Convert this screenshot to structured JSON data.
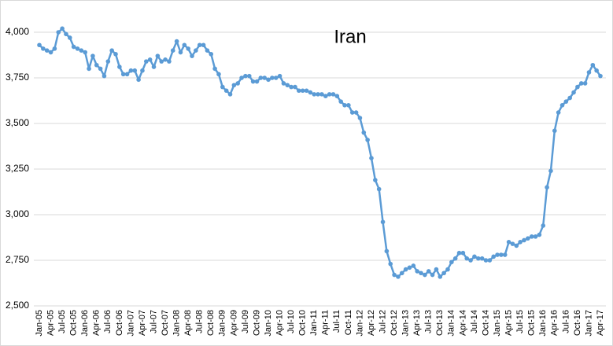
{
  "chart_data": {
    "type": "line",
    "title": "Iran",
    "categories": [
      "Jan-05",
      null,
      null,
      "Apr-05",
      null,
      null,
      "Jul-05",
      null,
      null,
      "Oct-05",
      null,
      null,
      "Jan-06",
      null,
      null,
      "Apr-06",
      null,
      null,
      "Jul-06",
      null,
      null,
      "Oct-06",
      null,
      null,
      "Jan-07",
      null,
      null,
      "Apr-07",
      null,
      null,
      "Jul-07",
      null,
      null,
      "Oct-07",
      null,
      null,
      "Jan-08",
      null,
      null,
      "Apr-08",
      null,
      null,
      "Jul-08",
      null,
      null,
      "Oct-08",
      null,
      null,
      "Jan-09",
      null,
      null,
      "Apr-09",
      null,
      null,
      "Jul-09",
      null,
      null,
      "Oct-09",
      null,
      null,
      "Jan-10",
      null,
      null,
      "Apr-10",
      null,
      null,
      "Jul-10",
      null,
      null,
      "Oct-10",
      null,
      null,
      "Jan-11",
      null,
      null,
      "Apr-11",
      null,
      null,
      "Jul-11",
      null,
      null,
      "Oct-11",
      null,
      null,
      "Jan-12",
      null,
      null,
      "Apr-12",
      null,
      null,
      "Jul-12",
      null,
      null,
      "Oct-12",
      null,
      null,
      "Jan-13",
      null,
      null,
      "Apr-13",
      null,
      null,
      "Jul-13",
      null,
      null,
      "Oct-13",
      null,
      null,
      "Jan-14",
      null,
      null,
      "Apr-14",
      null,
      null,
      "Jul-14",
      null,
      null,
      "Oct-14",
      null,
      null,
      "Jan-15",
      null,
      null,
      "Apr-15",
      null,
      null,
      "Jul-15",
      null,
      null,
      "Oct-15",
      null,
      null,
      "Jan-16",
      null,
      null,
      "Apr-16",
      null,
      null,
      "Jul-16",
      null,
      null,
      "Oct-16",
      null,
      null,
      "Jan-17",
      null,
      null,
      "Apr-17"
    ],
    "series": [
      {
        "color": "#5b9bd5",
        "values": [
          3930,
          3910,
          3900,
          3890,
          3910,
          4000,
          4020,
          3990,
          3970,
          3920,
          3910,
          3900,
          3890,
          3800,
          3870,
          3820,
          3800,
          3760,
          3840,
          3900,
          3880,
          3810,
          3770,
          3770,
          3790,
          3790,
          3740,
          3790,
          3840,
          3850,
          3810,
          3870,
          3840,
          3850,
          3840,
          3900,
          3950,
          3890,
          3930,
          3910,
          3870,
          3900,
          3930,
          3930,
          3900,
          3880,
          3800,
          3770,
          3700,
          3680,
          3660,
          3710,
          3720,
          3750,
          3760,
          3760,
          3730,
          3730,
          3750,
          3750,
          3740,
          3750,
          3750,
          3760,
          3720,
          3710,
          3700,
          3700,
          3680,
          3680,
          3680,
          3670,
          3660,
          3660,
          3660,
          3650,
          3660,
          3660,
          3650,
          3620,
          3600,
          3600,
          3560,
          3560,
          3530,
          3450,
          3410,
          3310,
          3190,
          3140,
          2960,
          2800,
          2730,
          2670,
          2660,
          2680,
          2700,
          2710,
          2720,
          2690,
          2680,
          2670,
          2690,
          2670,
          2700,
          2660,
          2680,
          2700,
          2740,
          2760,
          2790,
          2790,
          2760,
          2750,
          2770,
          2760,
          2760,
          2750,
          2750,
          2770,
          2780,
          2780,
          2780,
          2850,
          2840,
          2830,
          2850,
          2860,
          2870,
          2880,
          2880,
          2890,
          2940,
          3150,
          3240,
          3460,
          3560,
          3600,
          3620,
          3640,
          3670,
          3700,
          3720,
          3720,
          3780,
          3820,
          3790,
          3760
        ]
      }
    ],
    "ylim": [
      2500,
      4000
    ],
    "yticks": [
      {
        "value": 2500,
        "label": "2,500"
      },
      {
        "value": 2750,
        "label": "2,750"
      },
      {
        "value": 3000,
        "label": "3,000"
      },
      {
        "value": 3250,
        "label": "3,250"
      },
      {
        "value": 3500,
        "label": "3,500"
      },
      {
        "value": 3750,
        "label": "3,750"
      },
      {
        "value": 4000,
        "label": "4,000"
      }
    ],
    "grid": true
  }
}
